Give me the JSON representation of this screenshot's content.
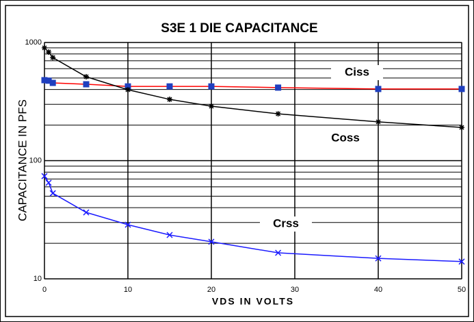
{
  "chart_data": {
    "type": "line",
    "title": "S3E 1 DIE CAPACITANCE",
    "x_label": "VDS IN VOLTS",
    "y_label": "CAPACITANCE IN PFS",
    "x": [
      0,
      0.5,
      1,
      5,
      10,
      15,
      20,
      28,
      40,
      50
    ],
    "series": [
      {
        "name": "Ciss",
        "color": "#ff0000",
        "marker": "square",
        "marker_color": "#1f3fbf",
        "values": [
          480,
          475,
          455,
          443,
          425,
          425,
          425,
          415,
          404,
          404
        ]
      },
      {
        "name": "Coss",
        "color": "#000000",
        "marker": "asterisk",
        "marker_color": "#000000",
        "values": [
          900,
          830,
          745,
          513,
          398,
          330,
          289,
          249,
          213,
          191
        ]
      },
      {
        "name": "Crss",
        "color": "#1a1aff",
        "marker": "cross",
        "marker_color": "#1a1aff",
        "values": [
          74,
          65,
          53,
          36.5,
          28.7,
          23.5,
          20.6,
          16.6,
          14.9,
          14
        ]
      }
    ],
    "xlim": [
      0,
      50
    ],
    "xticks": [
      0,
      10,
      20,
      30,
      40,
      50
    ],
    "ylim": [
      10,
      1000
    ],
    "yticks": [
      10,
      100,
      1000
    ],
    "yminorticks": [
      20,
      30,
      40,
      50,
      60,
      70,
      80,
      90,
      200,
      300,
      400,
      500,
      600,
      700,
      800,
      900
    ],
    "log_y": true,
    "grid": true
  }
}
